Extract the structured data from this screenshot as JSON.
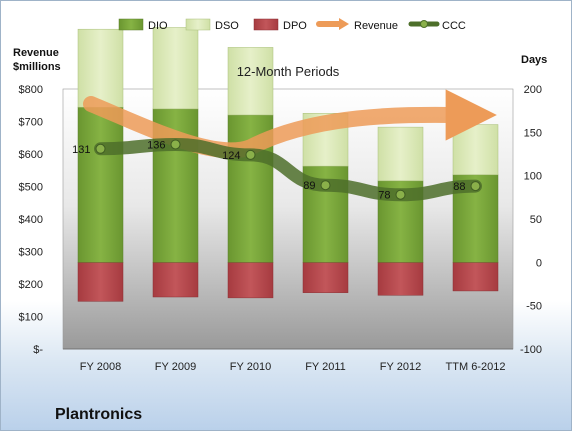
{
  "company": "Plantronics",
  "chart_data": {
    "type": "bar",
    "title": "12-Month Periods",
    "left_axis_label": [
      "Revenue",
      "$millions"
    ],
    "right_axis_label": "Days",
    "categories": [
      "FY 2008",
      "FY 2009",
      "FY 2010",
      "FY 2011",
      "FY 2012",
      "TTM 6-2012"
    ],
    "left_ticks": [
      "$800",
      "$700",
      "$600",
      "$500",
      "$400",
      "$300",
      "$200",
      "$100",
      "$-"
    ],
    "right_ticks": [
      "200",
      "150",
      "100",
      "50",
      "0",
      "-50",
      "-100"
    ],
    "right_ylim": [
      -100,
      200
    ],
    "series": [
      {
        "name": "DIO",
        "type": "bar-stacked",
        "color": "#77a23a",
        "values": [
          179,
          177,
          170,
          111,
          94,
          101
        ]
      },
      {
        "name": "DSO",
        "type": "bar-stacked",
        "color": "#d8e7b4",
        "values": [
          90,
          94,
          78,
          61,
          62,
          58
        ]
      },
      {
        "name": "DPO",
        "type": "bar-negative",
        "color": "#b8484d",
        "values": [
          -45,
          -40,
          -41,
          -35,
          -38,
          -33
        ]
      },
      {
        "name": "CCC",
        "type": "line",
        "color": "#567a32",
        "values": [
          131,
          136,
          124,
          89,
          78,
          88
        ]
      }
    ],
    "revenue_trend": {
      "name": "Revenue",
      "color": "#ed9b58"
    },
    "legend": "top"
  }
}
